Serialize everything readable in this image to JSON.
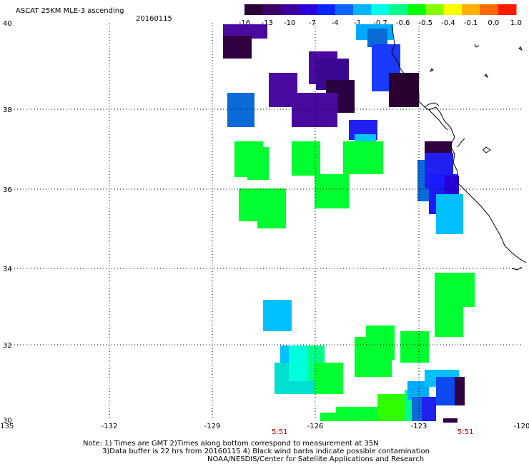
{
  "header": {
    "title": "ASCAT 25KM MLE-3 ascending",
    "date": "20160115"
  },
  "colorbar": {
    "colors": [
      "#2a0033",
      "#3c0066",
      "#3a00a0",
      "#2b00d8",
      "#0a24ff",
      "#0a66ff",
      "#00b4ff",
      "#00ffe4",
      "#00ff88",
      "#00ff00",
      "#88ff00",
      "#ffff00",
      "#ffb000",
      "#ff6a00",
      "#ff1a00"
    ],
    "labels": [
      "-16",
      "-13",
      "-10",
      "-7",
      "-4",
      "-1",
      "-0.7",
      "-0.6",
      "-0.5",
      "-0.4",
      "-0.1",
      "0.0",
      "1.0"
    ]
  },
  "axes": {
    "x_ticks": [
      "-135",
      "-132",
      "-129",
      "-126",
      "-123",
      "-120"
    ],
    "y_ticks": [
      "40",
      "38",
      "36",
      "34",
      "32",
      "30"
    ]
  },
  "times": [
    "5:51",
    "5:51"
  ],
  "notes": {
    "line1": "Note: 1) Times are GMT 2)Times along bottom correspond to measurement at 35N",
    "line2": "3)Data buffer is 22 hrs from 20160115 4) Black wind barbs indicate possible contamination",
    "line3": "NOAA/NESDIS/Center for Satellite Applications and Research"
  },
  "palette": {
    "dark_purple": "#300040",
    "purple": "#4a0aa0",
    "indigo": "#3a00a8",
    "blue": "#1a1aff",
    "mid_blue": "#0a6ad8",
    "light_blue": "#00aaff",
    "sky": "#00c0ff",
    "cyan": "#00ffdd",
    "green": "#00ff30",
    "lime": "#30ff00"
  }
}
